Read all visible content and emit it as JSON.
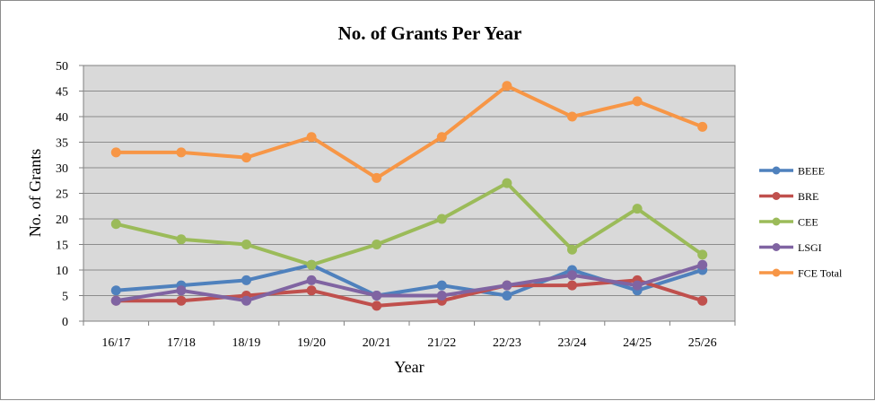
{
  "chart_data": {
    "type": "line",
    "title": "No. of Grants Per Year",
    "xlabel": "Year",
    "ylabel": "No. of Grants",
    "ylim": [
      0,
      50
    ],
    "yticks": [
      0,
      5,
      10,
      15,
      20,
      25,
      30,
      35,
      40,
      45,
      50
    ],
    "grid": true,
    "legend_position": "right",
    "categories": [
      "16/17",
      "17/18",
      "18/19",
      "19/20",
      "20/21",
      "21/22",
      "22/23",
      "23/24",
      "24/25",
      "25/26"
    ],
    "series": [
      {
        "name": "BEEE",
        "color": "#4f81bd",
        "values": [
          6,
          7,
          8,
          11,
          5,
          7,
          5,
          10,
          6,
          10
        ]
      },
      {
        "name": "BRE",
        "color": "#c0504d",
        "values": [
          4,
          4,
          5,
          6,
          3,
          4,
          7,
          7,
          8,
          4
        ]
      },
      {
        "name": "CEE",
        "color": "#9bbb59",
        "values": [
          19,
          16,
          15,
          11,
          15,
          20,
          27,
          14,
          22,
          13
        ]
      },
      {
        "name": "LSGI",
        "color": "#8064a2",
        "values": [
          4,
          6,
          4,
          8,
          5,
          5,
          7,
          9,
          7,
          11
        ]
      },
      {
        "name": "FCE Total",
        "color": "#f79646",
        "values": [
          33,
          33,
          32,
          36,
          28,
          36,
          46,
          40,
          43,
          38
        ]
      }
    ]
  }
}
